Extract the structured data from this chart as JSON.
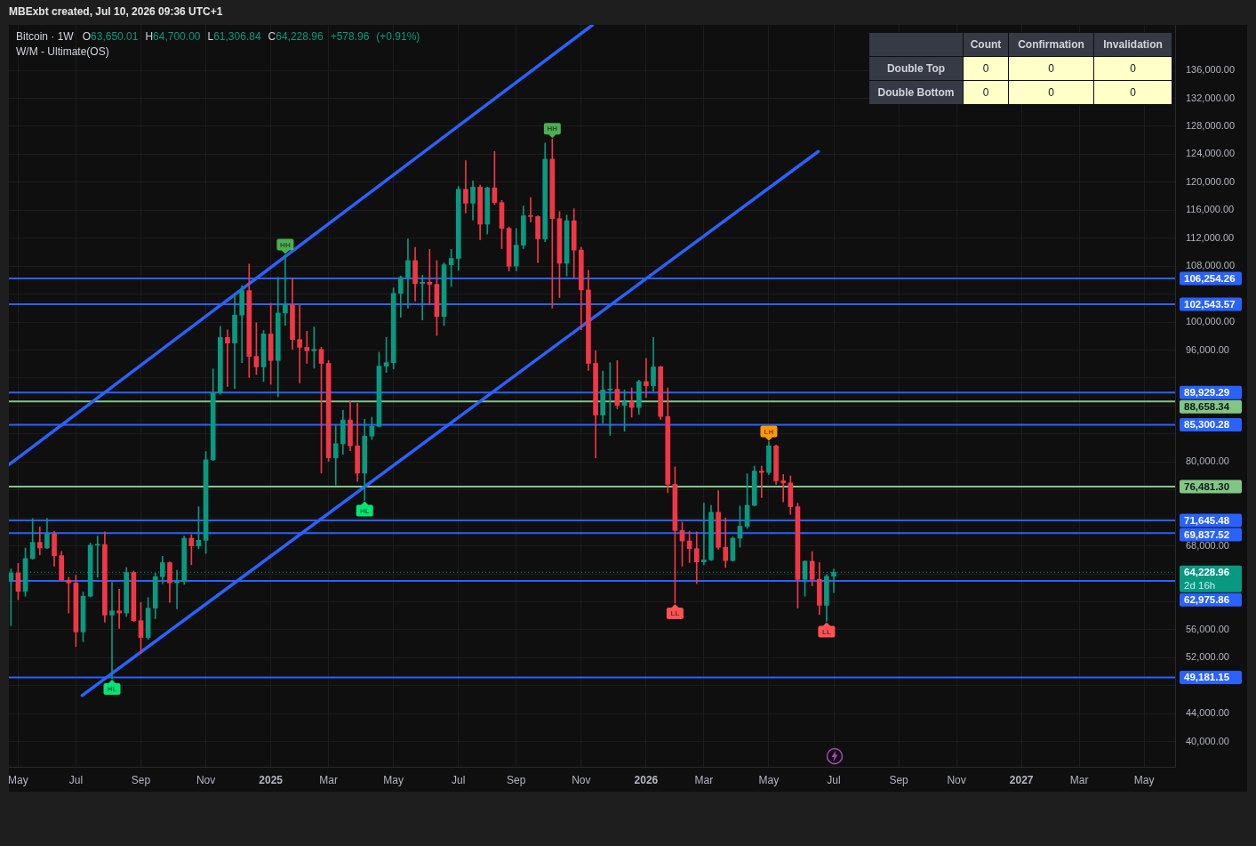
{
  "chart_data": [
    {
      "type": "candlestick",
      "title": "Bitcoin · 1W",
      "subtitle": "O63,650.01 H64,700.00 L61,306.84 C64,228.96 +578.96 (+0.91%)",
      "annotations": [
        "MBExbt created, Jul 10, 2026 09:36 UTC+1",
        "W/M - Ultimate(OS)",
        {
          "text": "HL",
          "x": "2024-08-05",
          "y": 49000
        },
        {
          "text": "HH",
          "x": "2025-01-20",
          "y": 109600
        },
        {
          "text": "HL",
          "x": "2025-04-07",
          "y": 74500
        },
        {
          "text": "HH",
          "x": "2025-10-06",
          "y": 126200
        },
        {
          "text": "LL",
          "x": "2026-02-02",
          "y": 59800
        },
        {
          "text": "LH",
          "x": "2026-05-04",
          "y": 82900
        },
        {
          "text": "LL",
          "x": "2026-06-29",
          "y": 57200
        }
      ],
      "x": [
        "2024-04-29",
        "2024-05-06",
        "2024-05-13",
        "2024-05-20",
        "2024-05-27",
        "2024-06-03",
        "2024-06-10",
        "2024-06-17",
        "2024-06-24",
        "2024-07-01",
        "2024-07-08",
        "2024-07-15",
        "2024-07-22",
        "2024-07-29",
        "2024-08-05",
        "2024-08-12",
        "2024-08-19",
        "2024-08-26",
        "2024-09-02",
        "2024-09-09",
        "2024-09-16",
        "2024-09-23",
        "2024-09-30",
        "2024-10-07",
        "2024-10-14",
        "2024-10-21",
        "2024-10-28",
        "2024-11-04",
        "2024-11-11",
        "2024-11-18",
        "2024-11-25",
        "2024-12-02",
        "2024-12-09",
        "2024-12-16",
        "2024-12-23",
        "2024-12-30",
        "2025-01-06",
        "2025-01-13",
        "2025-01-20",
        "2025-01-27",
        "2025-02-03",
        "2025-02-10",
        "2025-02-17",
        "2025-02-24",
        "2025-03-03",
        "2025-03-10",
        "2025-03-17",
        "2025-03-24",
        "2025-03-31",
        "2025-04-07",
        "2025-04-14",
        "2025-04-21",
        "2025-04-28",
        "2025-05-05",
        "2025-05-12",
        "2025-05-19",
        "2025-05-26",
        "2025-06-02",
        "2025-06-09",
        "2025-06-16",
        "2025-06-23",
        "2025-06-30",
        "2025-07-07",
        "2025-07-14",
        "2025-07-21",
        "2025-07-28",
        "2025-08-04",
        "2025-08-11",
        "2025-08-18",
        "2025-08-25",
        "2025-09-01",
        "2025-09-08",
        "2025-09-15",
        "2025-09-22",
        "2025-09-29",
        "2025-10-06",
        "2025-10-13",
        "2025-10-20",
        "2025-10-27",
        "2025-11-03",
        "2025-11-10",
        "2025-11-17",
        "2025-11-24",
        "2025-12-01",
        "2025-12-08",
        "2025-12-15",
        "2025-12-22",
        "2025-12-29",
        "2026-01-05",
        "2026-01-12",
        "2026-01-19",
        "2026-01-26",
        "2026-02-02",
        "2026-02-09",
        "2026-02-16",
        "2026-02-23",
        "2026-03-02",
        "2026-03-09",
        "2026-03-16",
        "2026-03-23",
        "2026-03-30",
        "2026-04-06",
        "2026-04-13",
        "2026-04-20",
        "2026-04-27",
        "2026-05-04",
        "2026-05-11",
        "2026-05-18",
        "2026-05-25",
        "2026-06-01",
        "2026-06-08",
        "2026-06-15",
        "2026-06-22",
        "2026-06-29",
        "2026-07-06"
      ],
      "ohlc": [
        [
          63100,
          64700,
          56600,
          64100
        ],
        [
          64100,
          65500,
          60300,
          61500
        ],
        [
          61500,
          67700,
          60800,
          66200
        ],
        [
          66200,
          71900,
          66100,
          68500
        ],
        [
          68500,
          70700,
          66700,
          67700
        ],
        [
          67700,
          71900,
          67600,
          69700
        ],
        [
          69700,
          70100,
          65100,
          66600
        ],
        [
          66600,
          67200,
          63000,
          63100
        ],
        [
          63100,
          63500,
          58400,
          62700
        ],
        [
          62700,
          63800,
          53600,
          55700
        ],
        [
          55700,
          61400,
          54300,
          60800
        ],
        [
          60800,
          68400,
          60700,
          68100
        ],
        [
          68100,
          69400,
          63500,
          68200
        ],
        [
          68200,
          70000,
          57100,
          58100
        ],
        [
          58100,
          62800,
          49000,
          58700
        ],
        [
          58700,
          61800,
          56200,
          58400
        ],
        [
          58400,
          64900,
          57900,
          64200
        ],
        [
          64200,
          64400,
          57200,
          57300
        ],
        [
          57300,
          59900,
          52600,
          54900
        ],
        [
          54900,
          60600,
          54600,
          59100
        ],
        [
          59100,
          64100,
          57600,
          63600
        ],
        [
          63600,
          66500,
          62600,
          65600
        ],
        [
          65600,
          65700,
          59900,
          62700
        ],
        [
          62700,
          64500,
          59000,
          62900
        ],
        [
          62900,
          69400,
          62500,
          69100
        ],
        [
          69100,
          69600,
          65300,
          68000
        ],
        [
          68000,
          73600,
          67600,
          68800
        ],
        [
          68800,
          81500,
          66900,
          80300
        ],
        [
          80300,
          93300,
          80200,
          89900
        ],
        [
          89900,
          99400,
          89700,
          97800
        ],
        [
          97800,
          98900,
          90800,
          97000
        ],
        [
          97000,
          104100,
          90500,
          101000
        ],
        [
          101000,
          105200,
          94200,
          104500
        ],
        [
          104500,
          108300,
          92100,
          95100
        ],
        [
          95100,
          99900,
          92500,
          93600
        ],
        [
          93600,
          98800,
          91500,
          98300
        ],
        [
          98300,
          102700,
          91100,
          94500
        ],
        [
          94500,
          106400,
          89300,
          101300
        ],
        [
          101300,
          109600,
          99500,
          102500
        ],
        [
          102500,
          106300,
          96100,
          97500
        ],
        [
          97500,
          102400,
          91300,
          96400
        ],
        [
          96400,
          98700,
          94100,
          95900
        ],
        [
          95900,
          99300,
          93400,
          96100
        ],
        [
          96100,
          96400,
          78400,
          94100
        ],
        [
          94100,
          94500,
          80100,
          80600
        ],
        [
          80600,
          85200,
          76700,
          82600
        ],
        [
          82600,
          87400,
          81100,
          86000
        ],
        [
          86000,
          88700,
          81600,
          82300
        ],
        [
          82300,
          88400,
          77200,
          78400
        ],
        [
          78400,
          86100,
          74500,
          83700
        ],
        [
          83700,
          86400,
          83200,
          85100
        ],
        [
          85100,
          95700,
          85000,
          93700
        ],
        [
          93700,
          97800,
          92800,
          94200
        ],
        [
          94200,
          104900,
          93300,
          104100
        ],
        [
          104100,
          106600,
          100700,
          106400
        ],
        [
          106400,
          111900,
          102000,
          108800
        ],
        [
          108800,
          110700,
          103000,
          105500
        ],
        [
          105500,
          106700,
          100300,
          105700
        ],
        [
          105700,
          110400,
          102500,
          105400
        ],
        [
          105400,
          108800,
          98100,
          100800
        ],
        [
          100800,
          108500,
          99500,
          108200
        ],
        [
          108200,
          110400,
          105100,
          109100
        ],
        [
          109100,
          119400,
          107400,
          119000
        ],
        [
          119000,
          123100,
          115600,
          117000
        ],
        [
          117000,
          120200,
          114600,
          119300
        ],
        [
          119300,
          119600,
          111800,
          114000
        ],
        [
          114000,
          119300,
          112600,
          119200
        ],
        [
          119200,
          124400,
          116800,
          117100
        ],
        [
          117100,
          117400,
          110500,
          113400
        ],
        [
          113400,
          113600,
          107300,
          108000
        ],
        [
          108000,
          113400,
          107300,
          111000
        ],
        [
          111000,
          116600,
          110500,
          115200
        ],
        [
          115200,
          117800,
          114300,
          115100
        ],
        [
          115100,
          115200,
          108500,
          111900
        ],
        [
          111900,
          125600,
          111500,
          123300
        ],
        [
          123300,
          126200,
          102000,
          114800
        ],
        [
          114800,
          115800,
          103500,
          108400
        ],
        [
          108400,
          115300,
          106600,
          114500
        ],
        [
          114500,
          116200,
          106300,
          110300
        ],
        [
          110300,
          110700,
          98900,
          104600
        ],
        [
          104600,
          107400,
          93100,
          94100
        ],
        [
          94100,
          95900,
          80600,
          86700
        ],
        [
          86700,
          93000,
          85500,
          90300
        ],
        [
          90300,
          94200,
          83800,
          90400
        ],
        [
          90400,
          94500,
          87600,
          88100
        ],
        [
          88100,
          90300,
          84400,
          88600
        ],
        [
          88600,
          90600,
          86400,
          87800
        ],
        [
          87800,
          91700,
          86800,
          91500
        ],
        [
          91500,
          94800,
          89200,
          90900
        ],
        [
          90900,
          97800,
          90100,
          93600
        ],
        [
          93600,
          93700,
          86100,
          86500
        ],
        [
          86500,
          90600,
          75600,
          76800
        ],
        [
          76800,
          79300,
          59800,
          70200
        ],
        [
          70200,
          71400,
          65100,
          68700
        ],
        [
          68700,
          70100,
          65600,
          67600
        ],
        [
          67600,
          70000,
          62600,
          65700
        ],
        [
          65700,
          74100,
          65300,
          66000
        ],
        [
          66000,
          73800,
          65900,
          72800
        ],
        [
          72800,
          75900,
          67500,
          67800
        ],
        [
          67800,
          72000,
          64900,
          65900
        ],
        [
          65900,
          69300,
          65800,
          69100
        ],
        [
          69100,
          73700,
          67800,
          70800
        ],
        [
          70800,
          78300,
          70500,
          73800
        ],
        [
          73800,
          79400,
          73700,
          78700
        ],
        [
          78700,
          79400,
          74900,
          78500
        ],
        [
          78500,
          82900,
          78200,
          82300
        ],
        [
          82300,
          82400,
          76800,
          77300
        ],
        [
          77300,
          78200,
          74300,
          77000
        ],
        [
          77000,
          78000,
          72500,
          73600
        ],
        [
          73600,
          74100,
          59100,
          63200
        ],
        [
          63200,
          65900,
          60800,
          65800
        ],
        [
          65800,
          67200,
          62300,
          63200
        ],
        [
          63200,
          65600,
          58200,
          59500
        ],
        [
          59500,
          63900,
          57200,
          63650.01
        ],
        [
          63650.01,
          64700.0,
          61306.84,
          64228.96
        ]
      ],
      "colors": [
        "#089981",
        "#f23645",
        "#089981",
        "#089981",
        "#f23645",
        "#089981",
        "#f23645",
        "#f23645",
        "#f23645",
        "#f23645",
        "#089981",
        "#089981",
        "#089981",
        "#f23645",
        "#089981",
        "#f23645",
        "#089981",
        "#f23645",
        "#f23645",
        "#089981",
        "#089981",
        "#089981",
        "#f23645",
        "#089981",
        "#089981",
        "#f23645",
        "#089981",
        "#089981",
        "#089981",
        "#089981",
        "#f23645",
        "#089981",
        "#089981",
        "#f23645",
        "#f23645",
        "#089981",
        "#f23645",
        "#089981",
        "#089981",
        "#f23645",
        "#f23645",
        "#f23645",
        "#089981",
        "#f23645",
        "#f23645",
        "#089981",
        "#089981",
        "#f23645",
        "#f23645",
        "#089981",
        "#089981",
        "#089981",
        "#089981",
        "#089981",
        "#089981",
        "#089981",
        "#f23645",
        "#089981",
        "#f23645",
        "#f23645",
        "#089981",
        "#089981",
        "#089981",
        "#f23645",
        "#089981",
        "#f23645",
        "#089981",
        "#f23645",
        "#f23645",
        "#f23645",
        "#089981",
        "#089981",
        "#f23645",
        "#f23645",
        "#089981",
        "#f23645",
        "#f23645",
        "#089981",
        "#f23645",
        "#f23645",
        "#f23645",
        "#f23645",
        "#089981",
        "#089981",
        "#f23645",
        "#089981",
        "#f23645",
        "#089981",
        "#f23645",
        "#089981",
        "#f23645",
        "#f23645",
        "#f23645",
        "#f23645",
        "#f23645",
        "#f23645",
        "#089981",
        "#089981",
        "#f23645",
        "#f23645",
        "#089981",
        "#089981",
        "#089981",
        "#089981",
        "#f23645",
        "#089981",
        "#f23645",
        "#f23645",
        "#f23645",
        "#f23645",
        "#089981",
        "#f23645",
        "#f23645",
        "#089981",
        "#089981"
      ],
      "series": [
        {
          "type": "line",
          "x": [
            "2024-04-27",
            "2025-11-14"
          ],
          "values": [
            79600,
            142500
          ],
          "color": "#2962ff"
        },
        {
          "type": "line",
          "x": [
            "2024-07-07",
            "2026-06-21"
          ],
          "values": [
            46600,
            124400
          ],
          "color": "#2962ff"
        }
      ],
      "xlim": [
        "2024-04-27",
        "2027-06-02"
      ],
      "xticks": [
        {
          "value": "2024-05-06",
          "label": "May"
        },
        {
          "value": "2024-07-01",
          "label": "Jul"
        },
        {
          "value": "2024-09-02",
          "label": "Sep"
        },
        {
          "value": "2024-11-04",
          "label": "Nov"
        },
        {
          "value": "2025-01-06",
          "label": "2025"
        },
        {
          "value": "2025-03-03",
          "label": "Mar"
        },
        {
          "value": "2025-05-05",
          "label": "May"
        },
        {
          "value": "2025-07-07",
          "label": "Jul"
        },
        {
          "value": "2025-09-01",
          "label": "Sep"
        },
        {
          "value": "2025-11-03",
          "label": "Nov"
        },
        {
          "value": "2026-01-05",
          "label": "2026"
        },
        {
          "value": "2026-03-02",
          "label": "Mar"
        },
        {
          "value": "2026-05-04",
          "label": "May"
        },
        {
          "value": "2026-07-06",
          "label": "Jul"
        },
        {
          "value": "2026-09-07",
          "label": "Sep"
        },
        {
          "value": "2026-11-02",
          "label": "Nov"
        },
        {
          "value": "2027-01-04",
          "label": "2027"
        },
        {
          "value": "2027-03-01",
          "label": "Mar"
        },
        {
          "value": "2027-05-03",
          "label": "May"
        }
      ],
      "ylim": [
        36400,
        142500
      ],
      "yticks": [
        {
          "value": 40000,
          "label": "40,000.00"
        },
        {
          "value": 44000,
          "label": "44,000.00"
        },
        {
          "value": 48000,
          "label": null
        },
        {
          "value": 52000,
          "label": "52,000.00"
        },
        {
          "value": 56000,
          "label": "56,000.00"
        },
        {
          "value": 60000,
          "label": null
        },
        {
          "value": 64000,
          "label": null
        },
        {
          "value": 68000,
          "label": "68,000.00"
        },
        {
          "value": 72000,
          "label": null
        },
        {
          "value": 76000,
          "label": null
        },
        {
          "value": 80000,
          "label": "80,000.00"
        },
        {
          "value": 84000,
          "label": null
        },
        {
          "value": 88000,
          "label": null
        },
        {
          "value": 92000,
          "label": null
        },
        {
          "value": 96000,
          "label": "96,000.00"
        },
        {
          "value": 100000,
          "label": "100,000.00"
        },
        {
          "value": 104000,
          "label": null
        },
        {
          "value": 108000,
          "label": "108,000.00"
        },
        {
          "value": 112000,
          "label": "112,000.00"
        },
        {
          "value": 116000,
          "label": "116,000.00"
        },
        {
          "value": 120000,
          "label": "120,000.00"
        },
        {
          "value": 124000,
          "label": "124,000.00"
        },
        {
          "value": 128000,
          "label": "128,000.00"
        },
        {
          "value": 132000,
          "label": "132,000.00"
        },
        {
          "value": 136000,
          "label": "136,000.00"
        }
      ],
      "ref_lines": [
        {
          "axis": "y",
          "value": 106254.26,
          "label": "106,254.26",
          "color": "#2962ff"
        },
        {
          "axis": "y",
          "value": 102543.57,
          "label": "102,543.57",
          "color": "#2962ff"
        },
        {
          "axis": "y",
          "value": 89929.29,
          "label": "89,929.29",
          "color": "#2962ff"
        },
        {
          "axis": "y",
          "value": 88658.34,
          "label": "88,658.34",
          "color": "#81c784"
        },
        {
          "axis": "y",
          "value": 85300.28,
          "label": "85,300.28",
          "color": "#2962ff"
        },
        {
          "axis": "y",
          "value": 76481.3,
          "label": "76,481.30",
          "color": "#81c784"
        },
        {
          "axis": "y",
          "value": 71645.48,
          "label": "71,645.48",
          "color": "#2962ff"
        },
        {
          "axis": "y",
          "value": 69837.52,
          "label": "69,837.52",
          "color": "#2962ff"
        },
        {
          "axis": "y",
          "value": 64228.96,
          "label": "64,228.96\n2d 16h",
          "color": "#089981",
          "line_style": "dotted"
        },
        {
          "axis": "y",
          "value": 62975.86,
          "label": "62,975.86",
          "color": "#2962ff"
        },
        {
          "axis": "y",
          "value": 49181.15,
          "label": "49,181.15",
          "color": "#2962ff"
        }
      ],
      "grid": true
    },
    {
      "type": "heatmap",
      "categories": [
        "Count",
        "Confirmation",
        "Invalidation"
      ],
      "y_categories": [
        "Double Top",
        "Double Bottom"
      ],
      "cells": [
        [
          0,
          0,
          0
        ],
        [
          0,
          0,
          0
        ]
      ],
      "color": "#ffffc8",
      "data_labels": true
    }
  ]
}
